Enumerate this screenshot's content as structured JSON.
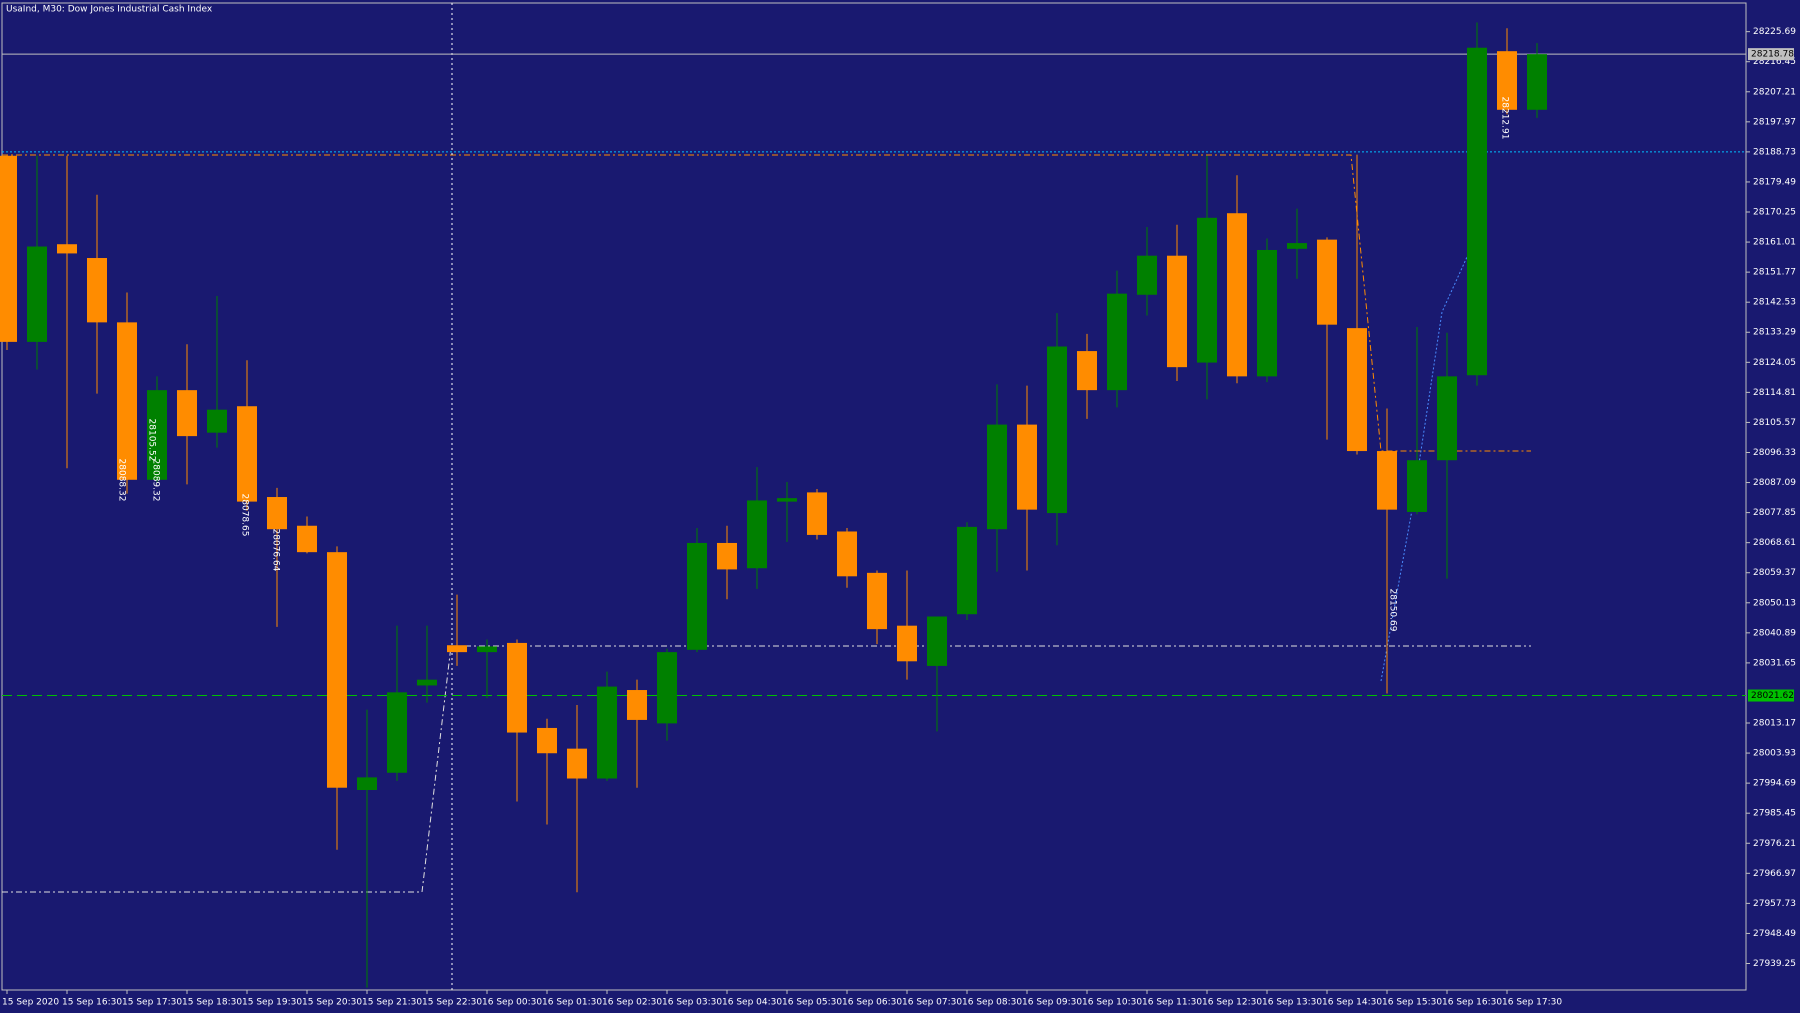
{
  "chart_data": {
    "type": "candlestick",
    "title": "UsaInd, M30:  Dow Jones Industrial Cash Index",
    "categories": [
      "15 Sep 2020",
      null,
      "15 Sep 16:30",
      null,
      "15 Sep 17:30",
      null,
      "15 Sep 18:30",
      null,
      "15 Sep 19:30",
      null,
      "15 Sep 20:30",
      null,
      "15 Sep 21:30",
      null,
      "15 Sep 22:30",
      null,
      "16 Sep 00:30",
      null,
      "16 Sep 01:30",
      null,
      "16 Sep 02:30",
      null,
      "16 Sep 03:30",
      null,
      "16 Sep 04:30",
      null,
      "16 Sep 05:30",
      null,
      "16 Sep 06:30",
      null,
      "16 Sep 07:30",
      null,
      "16 Sep 08:30",
      null,
      "16 Sep 09:30",
      null,
      "16 Sep 10:30",
      null,
      "16 Sep 11:30",
      null,
      "16 Sep 12:30",
      null,
      "16 Sep 13:30",
      null,
      "16 Sep 14:30",
      null,
      "16 Sep 15:30",
      null,
      "16 Sep 16:30",
      null,
      "16 Sep 17:30",
      null
    ],
    "open": [
      28187.54,
      28130.33,
      28160.35,
      28156.11,
      28136.33,
      28087.94,
      28115.49,
      28102.42,
      28110.55,
      28082.64,
      28073.81,
      28065.69,
      27992.58,
      27997.88,
      28024.72,
      28037.08,
      28034.96,
      28037.79,
      28011.65,
      28005.29,
      27996.11,
      28023.31,
      28013.06,
      28035.67,
      28068.52,
      28060.75,
      28081.23,
      28084.06,
      28072.05,
      28059.33,
      28043.09,
      28030.72,
      28046.62,
      28072.75,
      28104.9,
      28077.7,
      28127.5,
      28115.49,
      28144.81,
      28156.82,
      28123.97,
      28169.88,
      28119.73,
      28158.94,
      28161.76,
      28134.56,
      28096.77,
      28078.05,
      28093.95,
      28120.08,
      28219.69,
      28201.67
    ],
    "high": [
      28187.54,
      28187.54,
      28187.54,
      28175.54,
      28145.51,
      28119.73,
      28129.62,
      28144.45,
      28124.68,
      28085.47,
      28076.64,
      28067.46,
      28017.3,
      28043.09,
      28043.09,
      28052.62,
      28038.85,
      28038.85,
      28014.48,
      28018.72,
      28028.96,
      28026.49,
      28036.02,
      28073.11,
      28073.81,
      28091.83,
      28087.24,
      28085.12,
      28073.11,
      28060.04,
      28060.04,
      28045.91,
      28074.87,
      28117.26,
      28116.9,
      28139.16,
      28132.8,
      28152.22,
      28165.65,
      28166.35,
      28187.54,
      28181.54,
      28162.11,
      28171.3,
      28162.47,
      28187.9,
      28109.84,
      28134.92,
      28133.15,
      28228.52,
      28226.75,
      28222.16
    ],
    "low": [
      28127.85,
      28121.85,
      28091.47,
      28114.43,
      28083.7,
      28087.24,
      28086.53,
      28097.83,
      28078.41,
      28042.73,
      28065.3,
      27974.21,
      27931.83,
      27995.4,
      28019.42,
      28030.72,
      28020.83,
      27989.05,
      27981.98,
      27961.14,
      27995.4,
      27993.28,
      28007.77,
      28034.96,
      28051.21,
      28054.39,
      28068.87,
      28069.58,
      28054.74,
      28037.43,
      28026.49,
      28010.59,
      28044.85,
      28059.69,
      28060.04,
      28067.81,
      28106.66,
      28110.19,
      28138.45,
      28118.32,
      28112.67,
      28117.61,
      28117.96,
      28149.75,
      28100.3,
      28095.71,
      28022.25,
      28077.35,
      28057.57,
      28116.9,
      28200.26,
      28199.2
    ],
    "close": [
      28130.33,
      28159.64,
      28157.52,
      28136.33,
      28087.94,
      28115.49,
      28101.36,
      28109.49,
      28081.23,
      28072.75,
      28065.69,
      27993.28,
      27996.46,
      28022.6,
      28026.49,
      28034.96,
      28036.73,
      28010.24,
      28003.88,
      27996.11,
      28024.37,
      28014.12,
      28034.96,
      28068.52,
      28060.39,
      28081.59,
      28082.29,
      28070.99,
      28058.27,
      28042.03,
      28032.14,
      28045.91,
      28073.46,
      28104.9,
      28078.76,
      28128.91,
      28115.49,
      28145.16,
      28156.82,
      28122.56,
      28168.47,
      28119.73,
      28158.58,
      28160.7,
      28135.62,
      28096.77,
      28078.76,
      28093.95,
      28119.73,
      28220.75,
      28201.67,
      28218.78
    ],
    "up_color": "#008000",
    "down_color": "#ff8c00",
    "ylim": [
      27931.1,
      28234.5
    ],
    "yticks": [
      28225.69,
      28216.45,
      28207.21,
      28197.97,
      28188.73,
      28179.49,
      28170.25,
      28161.01,
      28151.77,
      28142.53,
      28133.29,
      28124.05,
      28114.81,
      28105.57,
      28096.33,
      28087.09,
      28077.85,
      28068.61,
      28059.37,
      28050.13,
      28040.89,
      28031.65,
      28013.17,
      28003.93,
      27994.69,
      27985.45,
      27976.21,
      27966.97,
      27957.73,
      27948.49,
      27939.25
    ],
    "price_lines": [
      {
        "value": 28218.78,
        "color": "#c0c0c0"
      },
      {
        "value": 28021.62,
        "color": "#00c000"
      }
    ],
    "levels": [
      {
        "value": 28188.73,
        "color": "#00bfff"
      }
    ],
    "annotations": [
      "28088.32",
      "28089.32",
      "28105.52",
      "28078.65",
      "28076.64",
      "28150.69",
      "28212.91"
    ]
  }
}
